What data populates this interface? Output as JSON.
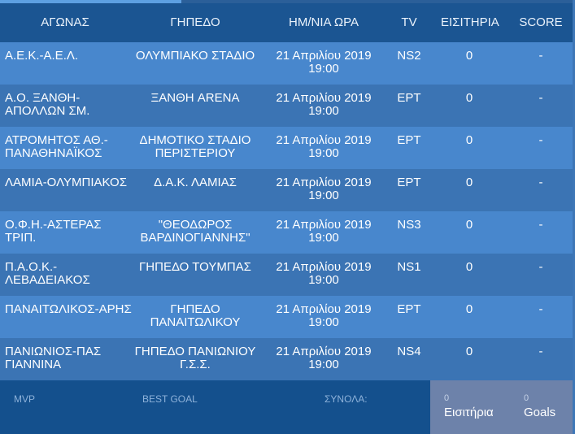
{
  "header": {
    "match": "ΑΓΩΝΑΣ",
    "venue": "ΓΗΠΕΔΟ",
    "datetime": "ΗΜ/ΝΙΑ ΩΡΑ",
    "tv": "TV",
    "tickets": "ΕΙΣΙΤΗΡΙΑ",
    "score": "SCORE"
  },
  "rows": [
    {
      "match": "Α.Ε.Κ.-Α.Ε.Λ.",
      "venue": "ΟΛΥΜΠΙΑΚΟ ΣΤΑΔΙΟ",
      "date": "21 Απριλίου 2019",
      "time": "19:00",
      "tv": "NS2",
      "tickets": "0",
      "score": "-"
    },
    {
      "match": "Α.Ο. ΞΑΝΘΗ-ΑΠΟΛΛΩΝ ΣΜ.",
      "venue": "ΞΑΝΘΗ ARENA",
      "date": "21 Απριλίου 2019",
      "time": "19:00",
      "tv": "ΕΡΤ",
      "tickets": "0",
      "score": "-"
    },
    {
      "match": "ΑΤΡΟΜΗΤΟΣ ΑΘ.-ΠΑΝΑΘΗΝΑΪΚΟΣ",
      "venue": "ΔΗΜΟΤΙΚΟ ΣΤΑΔΙΟ ΠΕΡΙΣΤΕΡΙΟΥ",
      "date": "21 Απριλίου 2019",
      "time": "19:00",
      "tv": "ΕΡΤ",
      "tickets": "0",
      "score": "-"
    },
    {
      "match": "ΛΑΜΙΑ-ΟΛΥΜΠΙΑΚΟΣ",
      "venue": "Δ.Α.Κ. ΛΑΜΙΑΣ",
      "date": "21 Απριλίου 2019",
      "time": "19:00",
      "tv": "ΕΡΤ",
      "tickets": "0",
      "score": "-"
    },
    {
      "match": "Ο.Φ.Η.-ΑΣΤΕΡΑΣ ΤΡΙΠ.",
      "venue": "\"ΘΕΟΔΩΡΟΣ ΒΑΡΔΙΝΟΓΙΑΝΝΗΣ\"",
      "date": "21 Απριλίου 2019",
      "time": "19:00",
      "tv": "NS3",
      "tickets": "0",
      "score": "-"
    },
    {
      "match": "Π.Α.Ο.Κ.-ΛΕΒΑΔΕΙΑΚΟΣ",
      "venue": "ΓΗΠΕΔΟ ΤΟΥΜΠΑΣ",
      "date": "21 Απριλίου 2019",
      "time": "19:00",
      "tv": "NS1",
      "tickets": "0",
      "score": "-"
    },
    {
      "match": "ΠΑΝΑΙΤΩΛΙΚΟΣ-ΑΡΗΣ",
      "venue": "ΓΗΠΕΔΟ ΠΑΝΑΙΤΩΛΙΚΟΥ",
      "date": "21 Απριλίου 2019",
      "time": "19:00",
      "tv": "ΕΡΤ",
      "tickets": "0",
      "score": "-"
    },
    {
      "match": "ΠΑΝΙΩΝΙΟΣ-ΠΑΣ ΓΙΑΝΝΙΝΑ",
      "venue": "ΓΗΠΕΔΟ ΠΑΝΙΩΝΙΟΥ Γ.Σ.Σ.",
      "date": "21 Απριλίου 2019",
      "time": "19:00",
      "tv": "NS4",
      "tickets": "0",
      "score": "-"
    }
  ],
  "footer": {
    "mvp": "MVP",
    "best_goal": "BEST GOAL",
    "totals": "ΣΥΝΟΛΑ:",
    "tickets_total": "0",
    "tickets_label": "Εισιτήρια",
    "goals_total": "0",
    "goals_label": "Goals"
  },
  "colors": {
    "header_bg": "#1b5592",
    "row_odd": "#4887cd",
    "row_even": "#3b74b4",
    "footer_bg": "#14508d",
    "totals_box": "#6d82aa",
    "accent_line": "#5da0e2"
  }
}
